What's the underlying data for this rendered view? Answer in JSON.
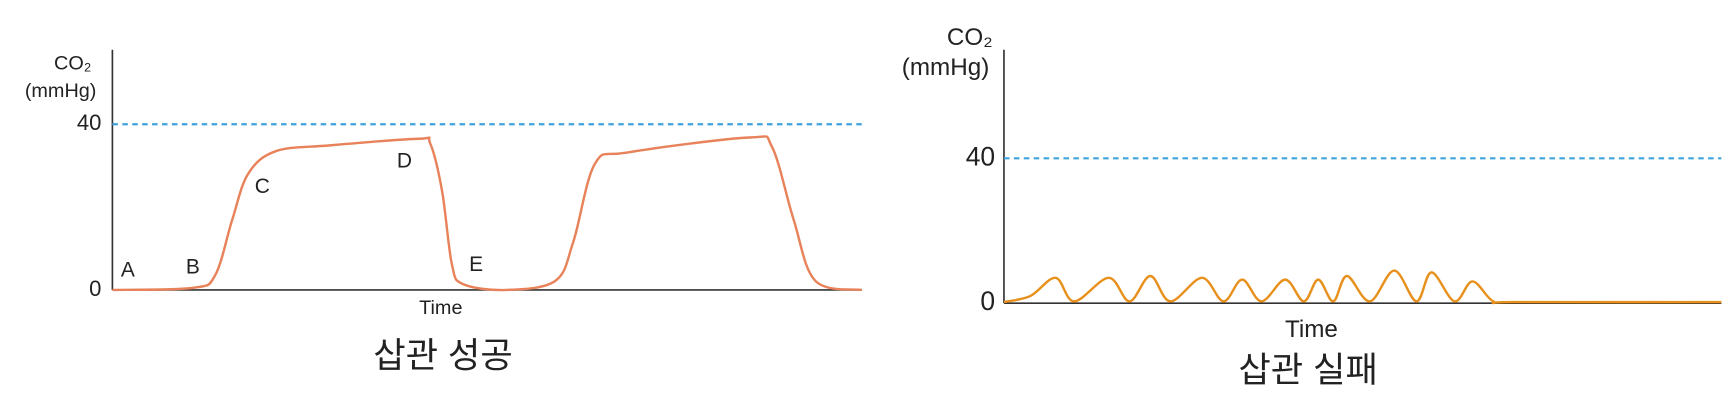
{
  "chart_data": [
    {
      "type": "line",
      "caption": "삽관 성공",
      "ylabel": [
        "CO₂",
        "(mmHg)"
      ],
      "xlabel": "Time",
      "xlim": [
        0,
        100
      ],
      "ylim": [
        0,
        58
      ],
      "yticks": [
        0,
        40
      ],
      "reference_line": 40,
      "reference_color": "#3fa3dc",
      "color": "#e8825a",
      "x": [
        0,
        10.7,
        13.7,
        16,
        18.1,
        21.8,
        29,
        40.9,
        42.4,
        44,
        45.3,
        46.8,
        52.6,
        59.1,
        61.5,
        64.4,
        68.8,
        85,
        88,
        90.9,
        93.8,
        100
      ],
      "values": [
        0,
        0.5,
        3.5,
        17,
        28,
        33.5,
        34.9,
        36.5,
        35.4,
        23.8,
        6.2,
        1.4,
        0,
        2.2,
        11.6,
        30.5,
        33.2,
        36.8,
        34.6,
        17,
        2.2,
        0
      ],
      "annotations": [
        "A",
        "B",
        "C",
        "D",
        "E"
      ]
    },
    {
      "type": "line",
      "caption": "삽관 실패",
      "ylabel": [
        "CO₂",
        "(mmHg)"
      ],
      "xlabel": "Time",
      "xlim": [
        0,
        100
      ],
      "ylim": [
        0,
        70
      ],
      "yticks": [
        0,
        40
      ],
      "reference_line": 40,
      "reference_color": "#3fa3dc",
      "color": "#e8901c",
      "x": [
        0,
        3.7,
        7.2,
        9.8,
        14.6,
        17.5,
        20.4,
        23.2,
        27.6,
        30.6,
        33.2,
        35.9,
        39.2,
        41.8,
        43.8,
        45.9,
        47.8,
        51.0,
        54.4,
        57.5,
        59.6,
        62.8,
        65.3,
        68.2,
        71.3,
        100
      ],
      "values": [
        0.3,
        2,
        7,
        0.5,
        7,
        0.5,
        7.5,
        0.5,
        7,
        0.5,
        6.5,
        0.5,
        6.5,
        0.5,
        6.5,
        0.5,
        7.5,
        0.5,
        9,
        0.5,
        8.5,
        0.5,
        6,
        0.5,
        0.3,
        0.3
      ]
    }
  ]
}
